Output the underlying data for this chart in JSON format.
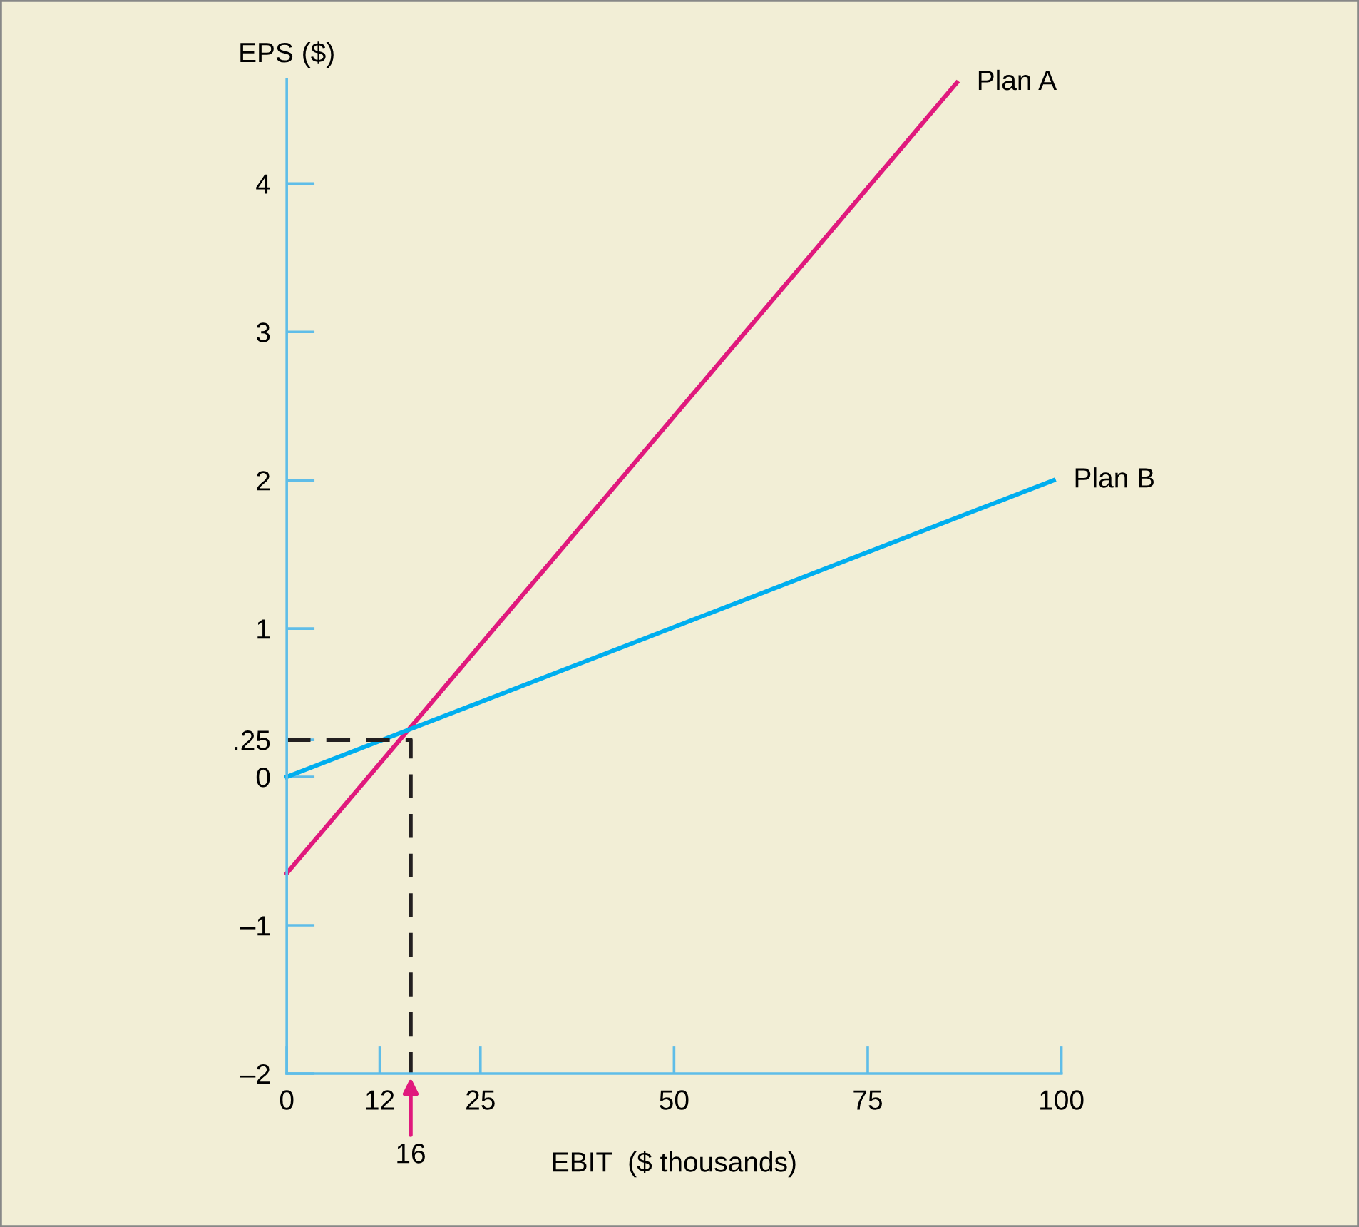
{
  "chart_data": {
    "type": "line",
    "xlabel": "EBIT  ($ thousands)",
    "ylabel": "EPS ($)",
    "xlim": [
      0,
      100
    ],
    "ylim": [
      -2,
      4.7
    ],
    "xticks": [
      0,
      12,
      25,
      50,
      75,
      100
    ],
    "yticks": [
      {
        "value": -2,
        "label": "–2"
      },
      {
        "value": -1,
        "label": "–1"
      },
      0,
      {
        "value": 0.25,
        "label": ".25"
      },
      1,
      2,
      3,
      4
    ],
    "grid": false,
    "legend": false,
    "marker": "none",
    "series": [
      {
        "name": "Plan A",
        "color": "#e0197d",
        "x": [
          0,
          86.5
        ],
        "values": [
          -0.65,
          4.68
        ]
      },
      {
        "name": "Plan B",
        "color": "#00aeef",
        "x": [
          0,
          99
        ],
        "values": [
          0,
          2
        ]
      },
      {
        "color": "#231f20",
        "x": [
          0,
          16,
          16
        ],
        "values": [
          0.25,
          0.25,
          -2
        ],
        "line_style": "dashed"
      }
    ],
    "annotations": [
      {
        "text": "16",
        "x": 16,
        "y": -2
      }
    ]
  }
}
